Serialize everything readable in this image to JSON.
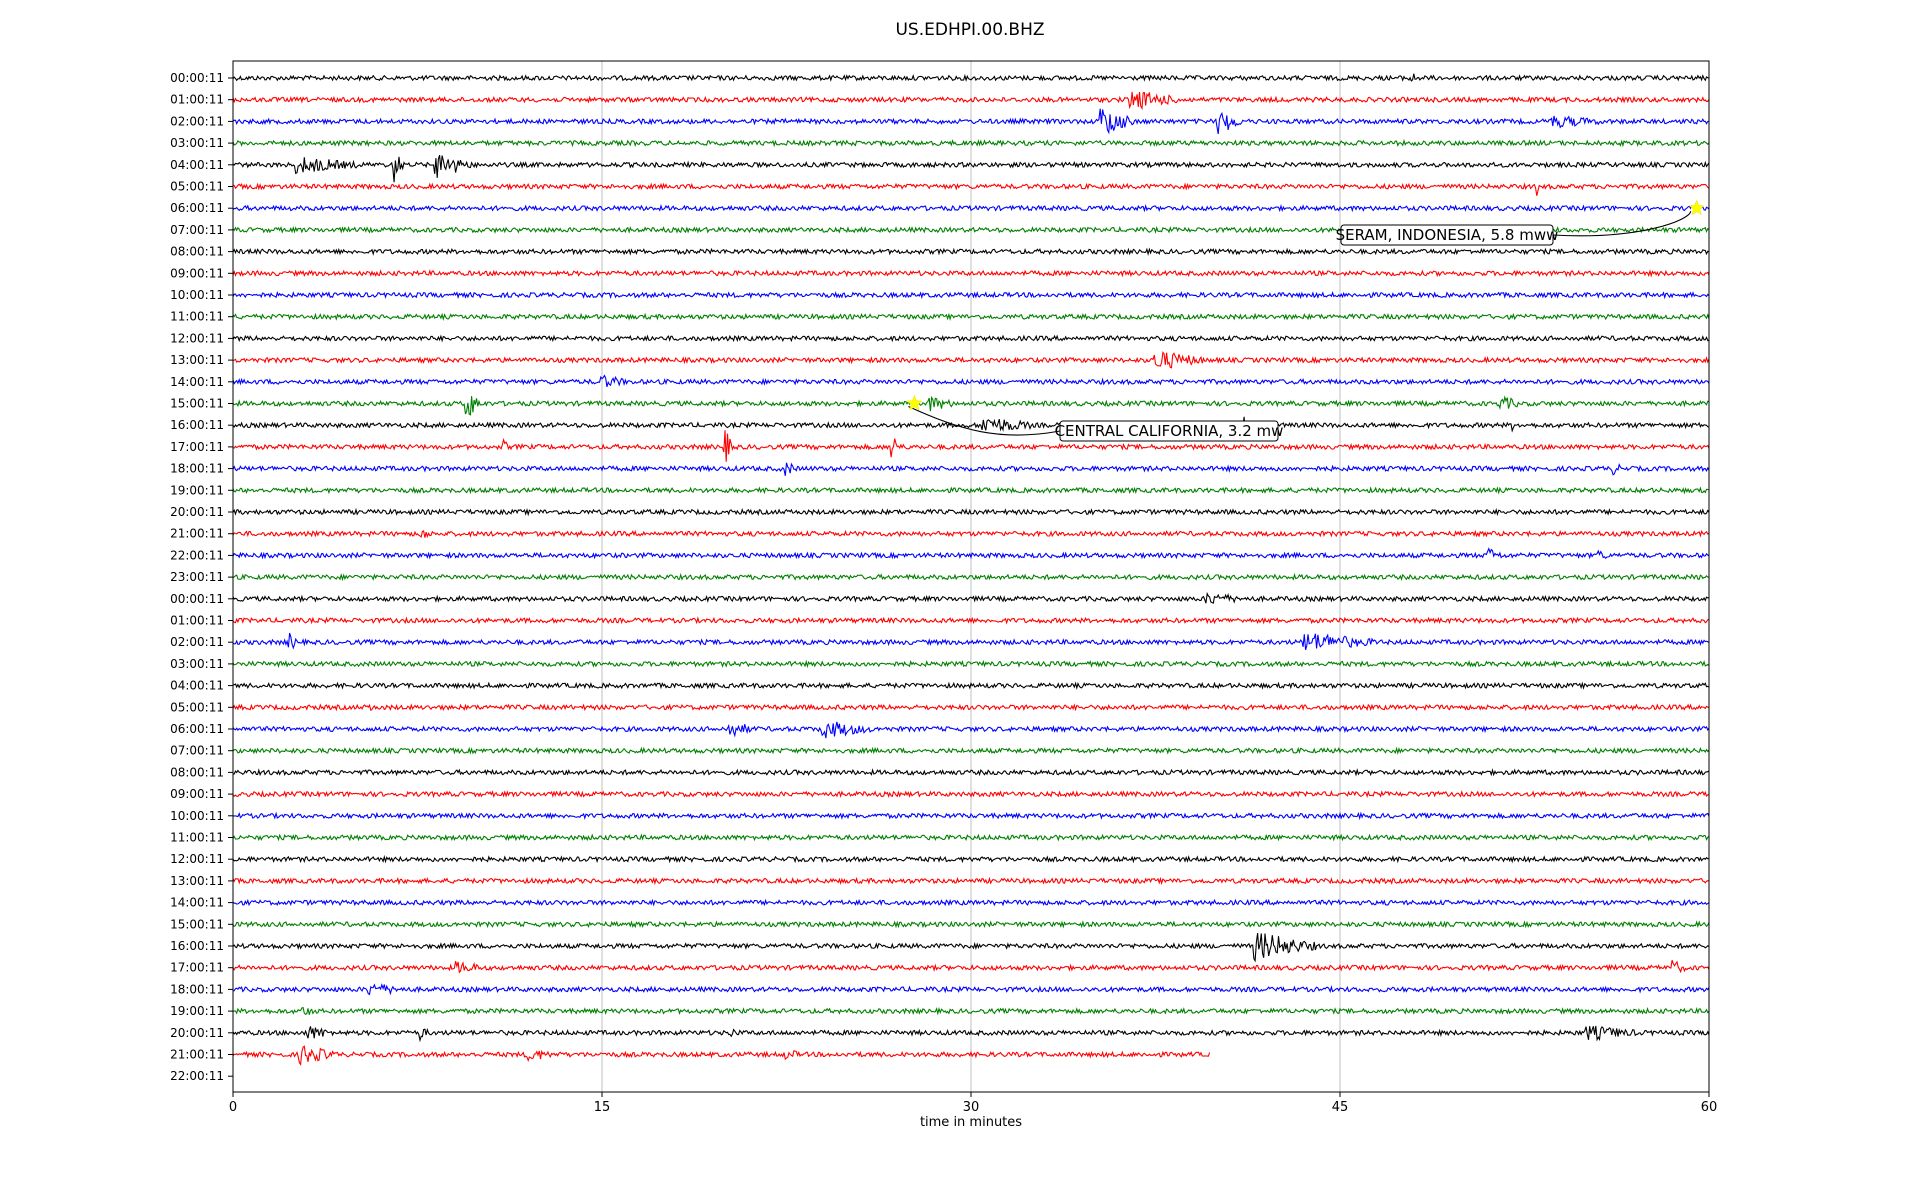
{
  "chart_data": {
    "type": "line",
    "title": "US.EDHPI.00.BHZ",
    "xlabel": "time in minutes",
    "ylabel": "",
    "xlim": [
      0,
      60
    ],
    "xticks": [
      0,
      15,
      30,
      45,
      60
    ],
    "grid_x": true,
    "grid_y": false,
    "colors": [
      "#000000",
      "#ff0000",
      "#0000ff",
      "#008000"
    ],
    "row_labels": [
      "00:00:11",
      "01:00:11",
      "02:00:11",
      "03:00:11",
      "04:00:11",
      "05:00:11",
      "06:00:11",
      "07:00:11",
      "08:00:11",
      "09:00:11",
      "10:00:11",
      "11:00:11",
      "12:00:11",
      "13:00:11",
      "14:00:11",
      "15:00:11",
      "16:00:11",
      "17:00:11",
      "18:00:11",
      "19:00:11",
      "20:00:11",
      "21:00:11",
      "22:00:11",
      "23:00:11",
      "00:00:11",
      "01:00:11",
      "02:00:11",
      "03:00:11",
      "04:00:11",
      "05:00:11",
      "06:00:11",
      "07:00:11",
      "08:00:11",
      "09:00:11",
      "10:00:11",
      "11:00:11",
      "12:00:11",
      "13:00:11",
      "14:00:11",
      "15:00:11",
      "16:00:11",
      "17:00:11",
      "18:00:11",
      "19:00:11",
      "20:00:11",
      "21:00:11",
      "22:00:11"
    ],
    "last_trace_end_minute": 39.7,
    "bursts": [
      {
        "row": 0,
        "t": 47.8,
        "amp": 0.5,
        "dur": 0.3
      },
      {
        "row": 1,
        "t": 36.5,
        "amp": 0.7,
        "dur": 2.0
      },
      {
        "row": 2,
        "t": 35.3,
        "amp": 1.2,
        "dur": 1.3
      },
      {
        "row": 2,
        "t": 40.0,
        "amp": 1.0,
        "dur": 1.0
      },
      {
        "row": 2,
        "t": 53.5,
        "amp": 0.4,
        "dur": 2.0
      },
      {
        "row": 4,
        "t": 2.5,
        "amp": 0.6,
        "dur": 2.5
      },
      {
        "row": 4,
        "t": 6.5,
        "amp": 1.6,
        "dur": 0.4
      },
      {
        "row": 4,
        "t": 8.2,
        "amp": 1.0,
        "dur": 1.5
      },
      {
        "row": 5,
        "t": 53.0,
        "amp": 0.6,
        "dur": 0.1
      },
      {
        "row": 13,
        "t": 37.5,
        "amp": 0.7,
        "dur": 2.0
      },
      {
        "row": 14,
        "t": 15.0,
        "amp": 0.4,
        "dur": 1.0
      },
      {
        "row": 15,
        "t": 9.5,
        "amp": 1.2,
        "dur": 0.6
      },
      {
        "row": 15,
        "t": 28.3,
        "amp": 0.5,
        "dur": 1.0
      },
      {
        "row": 15,
        "t": 51.5,
        "amp": 0.5,
        "dur": 0.8
      },
      {
        "row": 16,
        "t": 30.5,
        "amp": 0.6,
        "dur": 2.0
      },
      {
        "row": 16,
        "t": 41.1,
        "amp": 0.8,
        "dur": 0.2
      },
      {
        "row": 16,
        "t": 52.0,
        "amp": 0.3,
        "dur": 0.2
      },
      {
        "row": 17,
        "t": 20.0,
        "amp": 1.2,
        "dur": 0.4
      },
      {
        "row": 17,
        "t": 26.8,
        "amp": 0.9,
        "dur": 0.4
      },
      {
        "row": 17,
        "t": 11.0,
        "amp": 0.4,
        "dur": 0.2
      },
      {
        "row": 18,
        "t": 22.5,
        "amp": 0.5,
        "dur": 0.3
      },
      {
        "row": 18,
        "t": 56.0,
        "amp": 0.4,
        "dur": 0.5
      },
      {
        "row": 21,
        "t": 7.6,
        "amp": 0.4,
        "dur": 0.4
      },
      {
        "row": 22,
        "t": 51.0,
        "amp": 0.5,
        "dur": 0.6
      },
      {
        "row": 22,
        "t": 55.5,
        "amp": 0.5,
        "dur": 0.3
      },
      {
        "row": 24,
        "t": 39.5,
        "amp": 0.4,
        "dur": 1.5
      },
      {
        "row": 26,
        "t": 2.3,
        "amp": 0.6,
        "dur": 0.3
      },
      {
        "row": 26,
        "t": 43.5,
        "amp": 0.7,
        "dur": 3.0
      },
      {
        "row": 29,
        "t": 5.6,
        "amp": 0.4,
        "dur": 0.1
      },
      {
        "row": 30,
        "t": 20.2,
        "amp": 0.5,
        "dur": 1.0
      },
      {
        "row": 30,
        "t": 24.0,
        "amp": 0.6,
        "dur": 2.0
      },
      {
        "row": 40,
        "t": 41.5,
        "amp": 1.1,
        "dur": 2.5
      },
      {
        "row": 41,
        "t": 9.0,
        "amp": 0.4,
        "dur": 1.2
      },
      {
        "row": 41,
        "t": 58.5,
        "amp": 0.5,
        "dur": 0.5
      },
      {
        "row": 42,
        "t": 5.5,
        "amp": 0.4,
        "dur": 1.5
      },
      {
        "row": 43,
        "t": 2.8,
        "amp": 0.3,
        "dur": 0.5
      },
      {
        "row": 44,
        "t": 3.0,
        "amp": 0.5,
        "dur": 1.0
      },
      {
        "row": 44,
        "t": 7.6,
        "amp": 0.5,
        "dur": 0.3
      },
      {
        "row": 44,
        "t": 20.3,
        "amp": 0.4,
        "dur": 0.2
      },
      {
        "row": 44,
        "t": 55.0,
        "amp": 0.5,
        "dur": 2.0
      },
      {
        "row": 45,
        "t": 2.7,
        "amp": 0.7,
        "dur": 1.5
      },
      {
        "row": 45,
        "t": 12.0,
        "amp": 0.4,
        "dur": 1.0
      },
      {
        "row": 45,
        "t": 22.5,
        "amp": 0.3,
        "dur": 0.5
      }
    ],
    "annotations": [
      {
        "label": "SERAM, INDONESIA, 5.8 mww",
        "row": 6,
        "t": 59.5
      },
      {
        "label": "CENTRAL CALIFORNIA, 3.2 mw",
        "row": 15,
        "t": 27.7
      }
    ]
  }
}
